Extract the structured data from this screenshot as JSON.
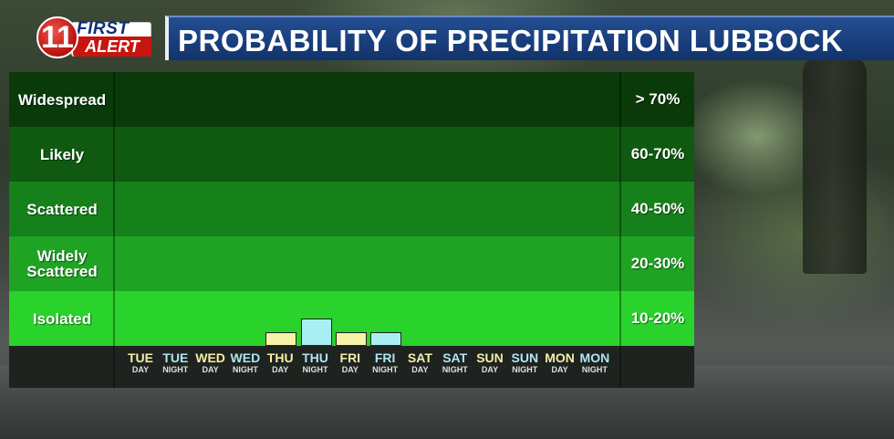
{
  "logo": {
    "number": "11",
    "first": "FIRST",
    "alert": "ALERT"
  },
  "title": "PROBABILITY OF PRECIPITATION LUBBOCK",
  "rows": [
    {
      "label": "Widespread",
      "range": "> 70%",
      "color": "#0a3a0a"
    },
    {
      "label": "Likely",
      "range": "60-70%",
      "color": "#0f5a10"
    },
    {
      "label": "Scattered",
      "range": "40-50%",
      "color": "#16801a"
    },
    {
      "label": "Widely Scattered",
      "range": "20-30%",
      "color": "#1fa323"
    },
    {
      "label": "Isolated",
      "range": "10-20%",
      "color": "#2ad22c"
    }
  ],
  "periods": [
    {
      "day": "TUE",
      "part": "DAY"
    },
    {
      "day": "TUE",
      "part": "NIGHT"
    },
    {
      "day": "WED",
      "part": "DAY"
    },
    {
      "day": "WED",
      "part": "NIGHT"
    },
    {
      "day": "THU",
      "part": "DAY"
    },
    {
      "day": "THU",
      "part": "NIGHT"
    },
    {
      "day": "FRI",
      "part": "DAY"
    },
    {
      "day": "FRI",
      "part": "NIGHT"
    },
    {
      "day": "SAT",
      "part": "DAY"
    },
    {
      "day": "SAT",
      "part": "NIGHT"
    },
    {
      "day": "SUN",
      "part": "DAY"
    },
    {
      "day": "SUN",
      "part": "NIGHT"
    },
    {
      "day": "MON",
      "part": "DAY"
    },
    {
      "day": "MON",
      "part": "NIGHT"
    }
  ],
  "chart_data": {
    "type": "bar",
    "categories": [
      "TUE DAY",
      "TUE NIGHT",
      "WED DAY",
      "WED NIGHT",
      "THU DAY",
      "THU NIGHT",
      "FRI DAY",
      "FRI NIGHT",
      "SAT DAY",
      "SAT NIGHT",
      "SUN DAY",
      "SUN NIGHT",
      "MON DAY",
      "MON NIGHT"
    ],
    "values": [
      0,
      0,
      0,
      0,
      5,
      10,
      5,
      5,
      0,
      0,
      0,
      0,
      0,
      0
    ],
    "ylabel": "",
    "ylim": [
      0,
      100
    ],
    "colors": {
      "day": "#f6f2a8",
      "night": "#a9eef3"
    }
  }
}
